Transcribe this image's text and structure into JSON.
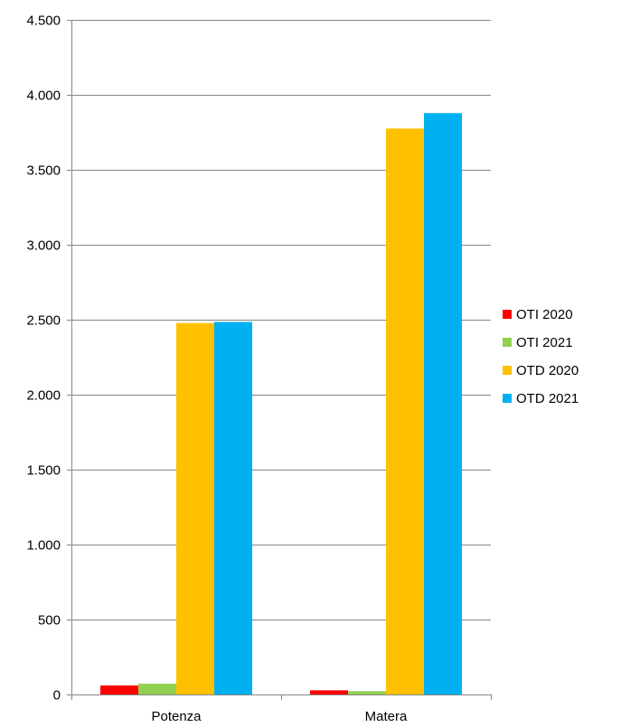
{
  "chart_data": {
    "type": "bar",
    "title": "",
    "xlabel": "",
    "ylabel": "",
    "categories": [
      "Potenza",
      "Matera"
    ],
    "series": [
      {
        "name": "OTI 2020",
        "color": "#ff0000",
        "values": [
          60,
          28
        ]
      },
      {
        "name": "OTI 2021",
        "color": "#92d050",
        "values": [
          72,
          22
        ]
      },
      {
        "name": "OTD 2020",
        "color": "#ffc000",
        "values": [
          2478,
          3775
        ]
      },
      {
        "name": "OTD 2021",
        "color": "#00b0f0",
        "values": [
          2485,
          3878
        ]
      }
    ],
    "ylim": [
      0,
      4500
    ],
    "yticks": [
      0,
      500,
      1000,
      1500,
      2000,
      2500,
      3000,
      3500,
      4000,
      4500
    ],
    "ytick_labels": [
      "0",
      "500",
      "1.000",
      "1.500",
      "2.000",
      "2.500",
      "3.000",
      "3.500",
      "4.000",
      "4.500"
    ],
    "grid": true,
    "legend_position": "right"
  }
}
